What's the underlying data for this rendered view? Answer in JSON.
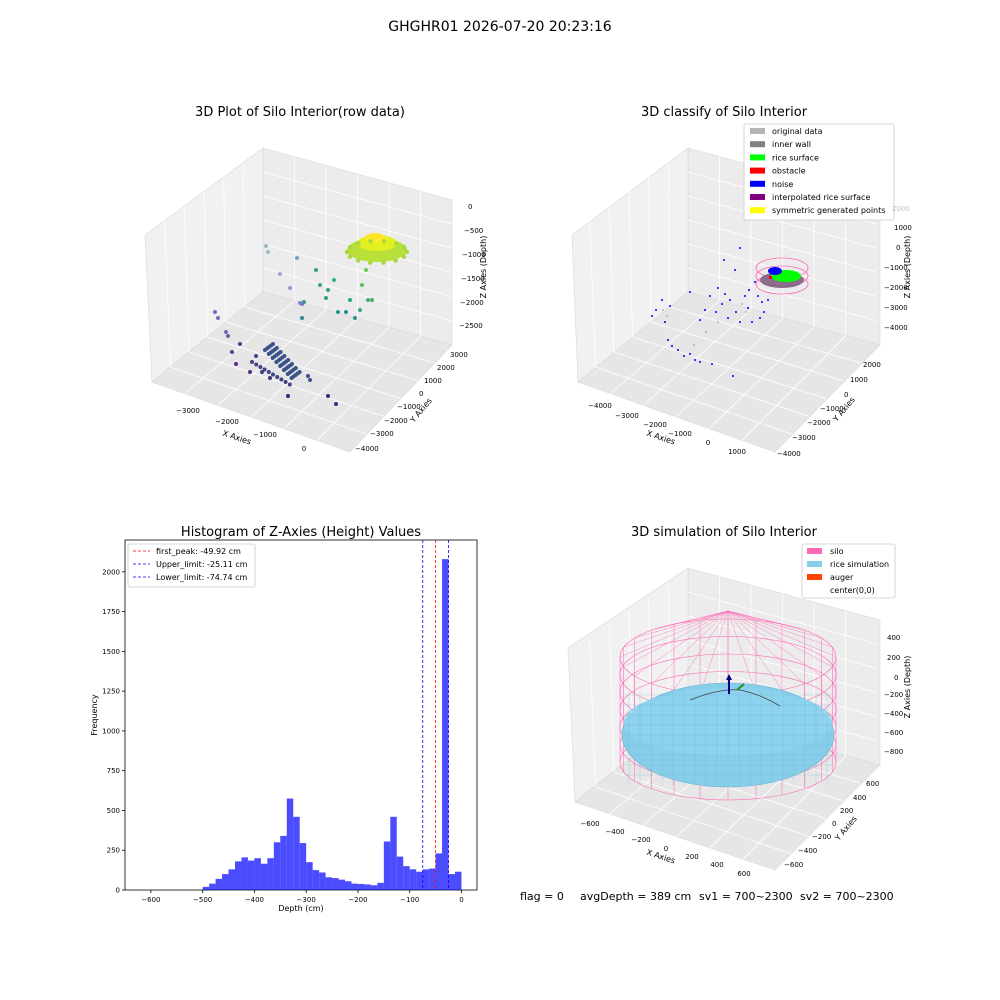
{
  "figure": {
    "suptitle": "GHGHR01 2026-07-20 20:23:16"
  },
  "panels": {
    "raw": {
      "title": "3D Plot of Silo Interior(row data)",
      "xlabel": "X Axies",
      "ylabel": "Y Axies",
      "zlabel": "Z Axies (Depth)",
      "xticks": [
        "−3000",
        "−2000",
        "−1000",
        "0"
      ],
      "yticks": [
        "3000",
        "2000",
        "1000",
        "0",
        "−1000",
        "−2000",
        "−3000",
        "−4000"
      ],
      "zticks": [
        "0",
        "−500",
        "−1000",
        "−1500",
        "−2000",
        "−2500"
      ]
    },
    "classify": {
      "title": "3D classify of Silo Interior",
      "xlabel": "X Axies",
      "ylabel": "Y Axies",
      "zlabel": "Z Axies (Depth)",
      "xticks": [
        "−4000",
        "−3000",
        "−2000",
        "−1000",
        "0",
        "1000"
      ],
      "yticks": [
        "2000",
        "1000",
        "0",
        "−1000",
        "−2000",
        "−3000",
        "−4000"
      ],
      "zticks": [
        "1000",
        "0",
        "−1000",
        "−2000",
        "−3000",
        "−4000"
      ],
      "zticks_hidden": [
        "2000"
      ],
      "legend": [
        {
          "label": "original data",
          "color": "#b4b4b4"
        },
        {
          "label": "inner wall",
          "color": "#808080"
        },
        {
          "label": "rice surface",
          "color": "#00ff00"
        },
        {
          "label": "obstacle",
          "color": "#ff0000"
        },
        {
          "label": "noise",
          "color": "#0000ff"
        },
        {
          "label": "interpolated rice surface",
          "color": "#800080"
        },
        {
          "label": "symmetric generated points",
          "color": "#ffff00"
        }
      ]
    },
    "simulation": {
      "title": "3D simulation of Silo Interior",
      "xlabel": "X Axies",
      "ylabel": "Y Axies",
      "zlabel": "Z Axies (Depth)",
      "xticks": [
        "−600",
        "−400",
        "−200",
        "0",
        "200",
        "400",
        "600"
      ],
      "yticks": [
        "600",
        "400",
        "200",
        "0",
        "−200",
        "−400",
        "−600"
      ],
      "zticks": [
        "400",
        "200",
        "0",
        "−200",
        "−400",
        "−600",
        "−800"
      ],
      "legend": [
        {
          "label": "silo",
          "color": "#ff69b4"
        },
        {
          "label": "rice simulation",
          "color": "#87ceeb"
        },
        {
          "label": "auger",
          "color": "#ff4500"
        },
        {
          "label": "center(0,0)",
          "color": "#ffffff"
        }
      ]
    },
    "footer": {
      "flag": "flag = 0",
      "avgDepth": "avgDepth = 389 cm",
      "sv1": "sv1 = 700~2300",
      "sv2": "sv2 = 700~2300"
    }
  },
  "chart_data": {
    "type": "bar",
    "title": "Histogram of Z-Axies (Height) Values",
    "xlabel": "Depth (cm)",
    "ylabel": "Frequency",
    "xlim": [
      -650,
      30
    ],
    "ylim": [
      0,
      2200
    ],
    "xticks": [
      -600,
      -500,
      -400,
      -300,
      -200,
      -100,
      0
    ],
    "yticks": [
      0,
      250,
      500,
      750,
      1000,
      1250,
      1500,
      1750,
      2000
    ],
    "bar_color": "#0000ff",
    "bin_width": 12.5,
    "bins_start": [
      -500,
      -487.5,
      -475,
      -462.5,
      -450,
      -437.5,
      -425,
      -412.5,
      -400,
      -387.5,
      -375,
      -362.5,
      -350,
      -337.5,
      -325,
      -312.5,
      -300,
      -287.5,
      -275,
      -262.5,
      -250,
      -237.5,
      -225,
      -212.5,
      -200,
      -187.5,
      -175,
      -162.5,
      -150,
      -137.5,
      -125,
      -112.5,
      -100,
      -87.5,
      -75,
      -62.5,
      -50,
      -37.5,
      -25,
      -12.5
    ],
    "values": [
      20,
      40,
      70,
      100,
      130,
      180,
      205,
      185,
      200,
      165,
      200,
      300,
      340,
      575,
      460,
      295,
      175,
      125,
      110,
      80,
      75,
      65,
      55,
      40,
      38,
      35,
      30,
      45,
      305,
      460,
      210,
      150,
      130,
      115,
      130,
      135,
      230,
      2080,
      100,
      115
    ],
    "vlines": [
      {
        "x": -49.92,
        "label": "first_peak: -49.92 cm",
        "color": "#ff0000"
      },
      {
        "x": -25.11,
        "label": "Upper_limit: -25.11 cm",
        "color": "#0000ff"
      },
      {
        "x": -74.74,
        "label": "Lower_limit: -74.74 cm",
        "color": "#0000ff"
      }
    ],
    "legend_position": "upper-left"
  }
}
